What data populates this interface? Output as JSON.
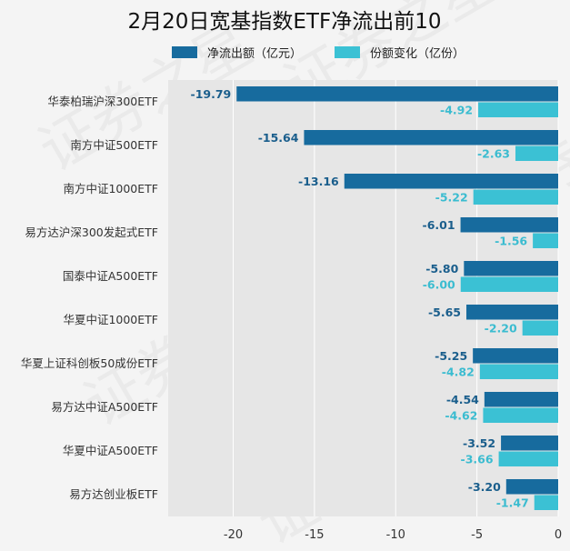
{
  "colors": {
    "series1": "#176b9e",
    "series2": "#3bc1d4",
    "plot_bg": "#e6e6e6",
    "grid": "#ffffff",
    "label1": "#1a5e8c",
    "label2": "#3bbcd0"
  },
  "watermark": "证券之星",
  "chart_data": {
    "type": "bar",
    "orientation": "horizontal",
    "title": "2月20日宽基指数ETF净流出前10",
    "categories": [
      "华泰柏瑞沪深300ETF",
      "南方中证500ETF",
      "南方中证1000ETF",
      "易方达沪深300发起式ETF",
      "国泰中证A500ETF",
      "华夏中证1000ETF",
      "华夏上证科创板50成份ETF",
      "易方达中证A500ETF",
      "华夏中证A500ETF",
      "易方达创业板ETF"
    ],
    "series": [
      {
        "name": "净流出额（亿元）",
        "values": [
          -19.79,
          -15.64,
          -13.16,
          -6.01,
          -5.8,
          -5.65,
          -5.25,
          -4.54,
          -3.52,
          -3.2
        ],
        "labels": [
          "-19.79",
          "-15.64",
          "-13.16",
          "-6.01",
          "-5.80",
          "-5.65",
          "-5.25",
          "-4.54",
          "-3.52",
          "-3.20"
        ]
      },
      {
        "name": "份额变化（亿份）",
        "values": [
          -4.92,
          -2.63,
          -5.22,
          -1.56,
          -6.0,
          -2.2,
          -4.82,
          -4.62,
          -3.66,
          -1.47
        ],
        "labels": [
          "-4.92",
          "-2.63",
          "-5.22",
          "-1.56",
          "-6.00",
          "-2.20",
          "-4.82",
          "-4.62",
          "-3.66",
          "-1.47"
        ]
      }
    ],
    "xlim": [
      -24,
      0
    ],
    "xticks": [
      -20,
      -15,
      -10,
      -5,
      0
    ],
    "xtick_labels": [
      "-20",
      "-15",
      "-10",
      "-5",
      "0"
    ],
    "xlabel": "",
    "ylabel": "",
    "grid": true,
    "legend_position": "top"
  }
}
